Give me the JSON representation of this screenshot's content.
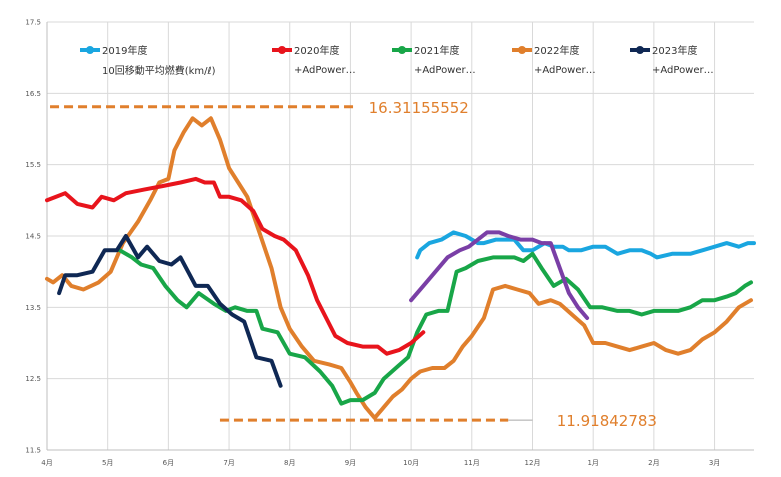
{
  "chart_data": {
    "type": "line",
    "subtitle": "10回移動平均燃費(km/ℓ)",
    "ylim": [
      11.5,
      17.5
    ],
    "yticks": [
      "11.5",
      "12.5",
      "13.5",
      "14.5",
      "15.5",
      "16.5",
      "17.5"
    ],
    "xlim": [
      0,
      11.65
    ],
    "xticks": [
      "4月",
      "5月",
      "6月",
      "7月",
      "8月",
      "9月",
      "10月",
      "11月",
      "12月",
      "1月",
      "2月",
      "3月"
    ],
    "grid": "on",
    "legend_position": "top",
    "series": [
      {
        "name": "2019年度",
        "color": "#1AA6E0",
        "points": [
          [
            6.1,
            14.2
          ],
          [
            6.15,
            14.3
          ],
          [
            6.3,
            14.4
          ],
          [
            6.5,
            14.45
          ],
          [
            6.7,
            14.55
          ],
          [
            6.9,
            14.5
          ],
          [
            7.1,
            14.4
          ],
          [
            7.2,
            14.4
          ],
          [
            7.4,
            14.45
          ],
          [
            7.55,
            14.45
          ],
          [
            7.7,
            14.45
          ],
          [
            7.85,
            14.3
          ],
          [
            8.0,
            14.3
          ],
          [
            8.2,
            14.4
          ],
          [
            8.35,
            14.35
          ],
          [
            8.5,
            14.35
          ],
          [
            8.6,
            14.3
          ],
          [
            8.8,
            14.3
          ],
          [
            9.0,
            14.35
          ],
          [
            9.2,
            14.35
          ],
          [
            9.4,
            14.25
          ],
          [
            9.6,
            14.3
          ],
          [
            9.8,
            14.3
          ],
          [
            9.95,
            14.25
          ],
          [
            10.05,
            14.2
          ],
          [
            10.3,
            14.25
          ],
          [
            10.45,
            14.25
          ],
          [
            10.6,
            14.25
          ],
          [
            10.8,
            14.3
          ],
          [
            11.0,
            14.35
          ],
          [
            11.2,
            14.4
          ],
          [
            11.4,
            14.35
          ],
          [
            11.55,
            14.4
          ],
          [
            11.65,
            14.4
          ]
        ]
      },
      {
        "name": "2020年度",
        "color": "#E8141C",
        "points": [
          [
            0.0,
            15.0
          ],
          [
            0.15,
            15.05
          ],
          [
            0.3,
            15.1
          ],
          [
            0.5,
            14.95
          ],
          [
            0.75,
            14.9
          ],
          [
            0.9,
            15.05
          ],
          [
            1.1,
            15.0
          ],
          [
            1.3,
            15.1
          ],
          [
            1.6,
            15.15
          ],
          [
            1.9,
            15.2
          ],
          [
            2.2,
            15.25
          ],
          [
            2.45,
            15.3
          ],
          [
            2.6,
            15.25
          ],
          [
            2.75,
            15.25
          ],
          [
            2.85,
            15.05
          ],
          [
            3.0,
            15.05
          ],
          [
            3.2,
            15.0
          ],
          [
            3.4,
            14.85
          ],
          [
            3.55,
            14.6
          ],
          [
            3.75,
            14.5
          ],
          [
            3.9,
            14.45
          ],
          [
            4.1,
            14.3
          ],
          [
            4.3,
            13.95
          ],
          [
            4.45,
            13.6
          ],
          [
            4.6,
            13.35
          ],
          [
            4.75,
            13.1
          ],
          [
            4.95,
            13.0
          ],
          [
            5.2,
            12.95
          ],
          [
            5.45,
            12.95
          ],
          [
            5.6,
            12.85
          ],
          [
            5.8,
            12.9
          ],
          [
            6.0,
            13.0
          ],
          [
            6.2,
            13.15
          ]
        ]
      },
      {
        "name": "2021年度",
        "color": "#18A648",
        "points": [
          [
            1.2,
            14.3
          ],
          [
            1.4,
            14.2
          ],
          [
            1.55,
            14.1
          ],
          [
            1.75,
            14.05
          ],
          [
            1.95,
            13.8
          ],
          [
            2.15,
            13.6
          ],
          [
            2.3,
            13.5
          ],
          [
            2.5,
            13.7
          ],
          [
            2.75,
            13.55
          ],
          [
            2.95,
            13.45
          ],
          [
            3.1,
            13.5
          ],
          [
            3.3,
            13.45
          ],
          [
            3.45,
            13.45
          ],
          [
            3.55,
            13.2
          ],
          [
            3.8,
            13.15
          ],
          [
            4.0,
            12.85
          ],
          [
            4.25,
            12.8
          ],
          [
            4.5,
            12.6
          ],
          [
            4.7,
            12.4
          ],
          [
            4.85,
            12.15
          ],
          [
            5.0,
            12.2
          ],
          [
            5.2,
            12.2
          ],
          [
            5.4,
            12.3
          ],
          [
            5.55,
            12.5
          ],
          [
            5.75,
            12.65
          ],
          [
            5.95,
            12.8
          ],
          [
            6.1,
            13.15
          ],
          [
            6.25,
            13.4
          ],
          [
            6.45,
            13.45
          ],
          [
            6.6,
            13.45
          ],
          [
            6.75,
            14.0
          ],
          [
            6.9,
            14.05
          ],
          [
            7.1,
            14.15
          ],
          [
            7.35,
            14.2
          ],
          [
            7.55,
            14.2
          ],
          [
            7.7,
            14.2
          ],
          [
            7.85,
            14.15
          ],
          [
            8.0,
            14.25
          ],
          [
            8.15,
            14.05
          ],
          [
            8.35,
            13.8
          ],
          [
            8.55,
            13.9
          ],
          [
            8.75,
            13.75
          ],
          [
            8.95,
            13.5
          ],
          [
            9.15,
            13.5
          ],
          [
            9.4,
            13.45
          ],
          [
            9.6,
            13.45
          ],
          [
            9.8,
            13.4
          ],
          [
            10.0,
            13.45
          ],
          [
            10.2,
            13.45
          ],
          [
            10.4,
            13.45
          ],
          [
            10.6,
            13.5
          ],
          [
            10.8,
            13.6
          ],
          [
            11.0,
            13.6
          ],
          [
            11.2,
            13.65
          ],
          [
            11.35,
            13.7
          ],
          [
            11.5,
            13.8
          ],
          [
            11.6,
            13.85
          ]
        ]
      },
      {
        "name": "2022年度",
        "color": "#E07F2C",
        "points": [
          [
            0.0,
            13.9
          ],
          [
            0.1,
            13.85
          ],
          [
            0.25,
            13.95
          ],
          [
            0.4,
            13.8
          ],
          [
            0.6,
            13.75
          ],
          [
            0.85,
            13.85
          ],
          [
            1.05,
            14.0
          ],
          [
            1.25,
            14.4
          ],
          [
            1.5,
            14.7
          ],
          [
            1.7,
            15.0
          ],
          [
            1.85,
            15.25
          ],
          [
            2.0,
            15.3
          ],
          [
            2.1,
            15.7
          ],
          [
            2.25,
            15.95
          ],
          [
            2.4,
            16.15
          ],
          [
            2.55,
            16.05
          ],
          [
            2.7,
            16.15
          ],
          [
            2.85,
            15.85
          ],
          [
            3.0,
            15.45
          ],
          [
            3.15,
            15.25
          ],
          [
            3.3,
            15.05
          ],
          [
            3.5,
            14.55
          ],
          [
            3.7,
            14.05
          ],
          [
            3.85,
            13.5
          ],
          [
            4.0,
            13.2
          ],
          [
            4.2,
            12.95
          ],
          [
            4.4,
            12.75
          ],
          [
            4.65,
            12.7
          ],
          [
            4.85,
            12.65
          ],
          [
            5.0,
            12.45
          ],
          [
            5.1,
            12.3
          ],
          [
            5.25,
            12.1
          ],
          [
            5.4,
            11.95
          ],
          [
            5.55,
            12.1
          ],
          [
            5.7,
            12.25
          ],
          [
            5.85,
            12.35
          ],
          [
            6.0,
            12.5
          ],
          [
            6.15,
            12.6
          ],
          [
            6.35,
            12.65
          ],
          [
            6.55,
            12.65
          ],
          [
            6.7,
            12.75
          ],
          [
            6.85,
            12.95
          ],
          [
            7.0,
            13.1
          ],
          [
            7.2,
            13.35
          ],
          [
            7.35,
            13.75
          ],
          [
            7.55,
            13.8
          ],
          [
            7.75,
            13.75
          ],
          [
            7.95,
            13.7
          ],
          [
            8.1,
            13.55
          ],
          [
            8.3,
            13.6
          ],
          [
            8.45,
            13.55
          ],
          [
            8.65,
            13.4
          ],
          [
            8.85,
            13.25
          ],
          [
            9.0,
            13.0
          ],
          [
            9.2,
            13.0
          ],
          [
            9.4,
            12.95
          ],
          [
            9.6,
            12.9
          ],
          [
            9.8,
            12.95
          ],
          [
            10.0,
            13.0
          ],
          [
            10.2,
            12.9
          ],
          [
            10.4,
            12.85
          ],
          [
            10.6,
            12.9
          ],
          [
            10.8,
            13.05
          ],
          [
            11.0,
            13.15
          ],
          [
            11.2,
            13.3
          ],
          [
            11.4,
            13.5
          ],
          [
            11.6,
            13.6
          ]
        ]
      },
      {
        "name": "2023年度",
        "color": "#0F2854",
        "points": [
          [
            0.2,
            13.7
          ],
          [
            0.3,
            13.95
          ],
          [
            0.5,
            13.95
          ],
          [
            0.75,
            14.0
          ],
          [
            0.95,
            14.3
          ],
          [
            1.15,
            14.3
          ],
          [
            1.3,
            14.5
          ],
          [
            1.5,
            14.2
          ],
          [
            1.65,
            14.35
          ],
          [
            1.85,
            14.15
          ],
          [
            2.05,
            14.1
          ],
          [
            2.2,
            14.2
          ],
          [
            2.45,
            13.8
          ],
          [
            2.65,
            13.8
          ],
          [
            2.85,
            13.55
          ],
          [
            3.05,
            13.4
          ],
          [
            3.25,
            13.3
          ],
          [
            3.45,
            12.8
          ],
          [
            3.7,
            12.75
          ],
          [
            3.85,
            12.4
          ]
        ]
      },
      {
        "color": "#7A3FA6",
        "points": [
          [
            6.0,
            13.6
          ],
          [
            6.2,
            13.8
          ],
          [
            6.4,
            14.0
          ],
          [
            6.6,
            14.2
          ],
          [
            6.8,
            14.3
          ],
          [
            6.95,
            14.35
          ],
          [
            7.1,
            14.45
          ],
          [
            7.25,
            14.55
          ],
          [
            7.45,
            14.55
          ],
          [
            7.6,
            14.5
          ],
          [
            7.8,
            14.45
          ],
          [
            8.0,
            14.45
          ],
          [
            8.15,
            14.4
          ],
          [
            8.3,
            14.4
          ],
          [
            8.45,
            14.05
          ],
          [
            8.6,
            13.7
          ],
          [
            8.75,
            13.5
          ],
          [
            8.9,
            13.35
          ]
        ]
      }
    ],
    "legend_notes": [
      "+AdPower…",
      "+AdPower…",
      "+AdPower…",
      "+AdPower…"
    ],
    "annotations": [
      {
        "text": "16.31155552",
        "value": 16.31155552
      },
      {
        "text": "11.91842783",
        "value": 11.91842783
      }
    ]
  }
}
